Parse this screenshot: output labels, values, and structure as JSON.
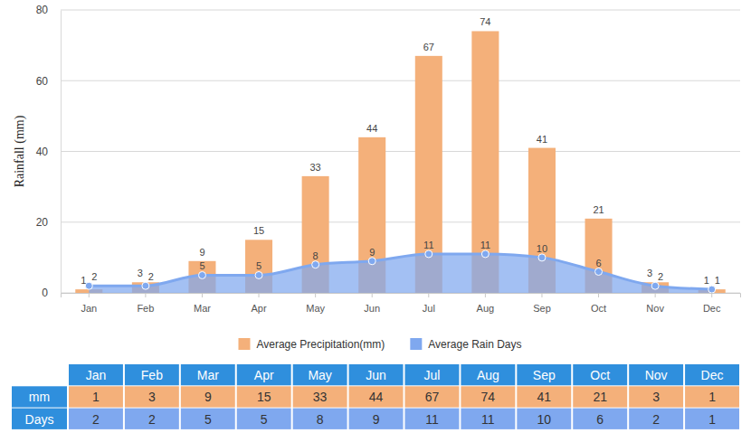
{
  "chart_data": {
    "type": "bar",
    "y_label": "Rainfall (mm)",
    "categories": [
      "Jan",
      "Feb",
      "Mar",
      "Apr",
      "May",
      "Jun",
      "Jul",
      "Aug",
      "Sep",
      "Oct",
      "Nov",
      "Dec"
    ],
    "series": [
      {
        "name": "Average Precipitation(mm)",
        "type": "bar",
        "color": "#f4b07a",
        "values": [
          1,
          3,
          9,
          15,
          33,
          44,
          67,
          74,
          41,
          21,
          3,
          1
        ]
      },
      {
        "name": "Average Rain Days",
        "type": "area",
        "color": "#7fa8ef",
        "marker": "circle",
        "values": [
          2,
          2,
          5,
          5,
          8,
          9,
          11,
          11,
          10,
          6,
          2,
          1
        ]
      }
    ],
    "ylim": [
      0,
      80
    ],
    "yticks": [
      0,
      20,
      40,
      60,
      80
    ],
    "grid": true,
    "data_labels": true,
    "legend": "bottom"
  },
  "table": {
    "header": [
      "Jan",
      "Feb",
      "Mar",
      "Apr",
      "May",
      "Jun",
      "Jul",
      "Aug",
      "Sep",
      "Oct",
      "Nov",
      "Dec"
    ],
    "rows": [
      [
        "mm",
        1,
        3,
        9,
        15,
        33,
        44,
        67,
        74,
        41,
        21,
        3,
        1
      ],
      [
        "Days",
        2,
        2,
        5,
        5,
        8,
        9,
        11,
        11,
        10,
        6,
        2,
        1
      ]
    ]
  }
}
